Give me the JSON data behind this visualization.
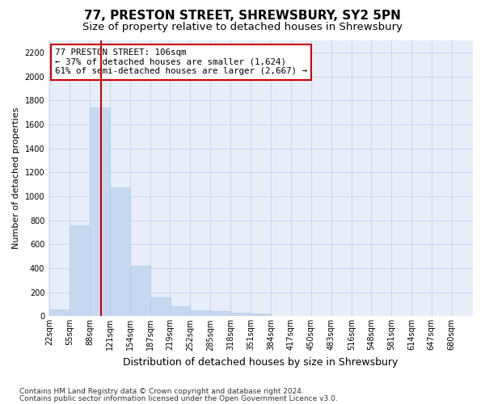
{
  "title": "77, PRESTON STREET, SHREWSBURY, SY2 5PN",
  "subtitle": "Size of property relative to detached houses in Shrewsbury",
  "xlabel": "Distribution of detached houses by size in Shrewsbury",
  "ylabel": "Number of detached properties",
  "footnote1": "Contains HM Land Registry data © Crown copyright and database right 2024.",
  "footnote2": "Contains public sector information licensed under the Open Government Licence v3.0.",
  "annotation_line1": "77 PRESTON STREET: 106sqm",
  "annotation_line2": "← 37% of detached houses are smaller (1,624)",
  "annotation_line3": "61% of semi-detached houses are larger (2,667) →",
  "bar_color": "#c5d8f0",
  "bar_edge_color": "#b0c8e8",
  "redline_color": "#cc0000",
  "background_color": "#e8eef8",
  "grid_color": "#c8d4ec",
  "bin_labels": [
    "22sqm",
    "55sqm",
    "88sqm",
    "121sqm",
    "154sqm",
    "187sqm",
    "219sqm",
    "252sqm",
    "285sqm",
    "318sqm",
    "351sqm",
    "384sqm",
    "417sqm",
    "450sqm",
    "483sqm",
    "516sqm",
    "548sqm",
    "581sqm",
    "614sqm",
    "647sqm",
    "680sqm"
  ],
  "bin_left_edges": [
    22,
    55,
    88,
    121,
    154,
    187,
    219,
    252,
    285,
    318,
    351,
    384,
    417,
    450,
    483,
    516,
    548,
    581,
    614,
    647,
    680
  ],
  "bin_width": 33,
  "bar_heights": [
    55,
    760,
    1740,
    1075,
    420,
    160,
    85,
    50,
    45,
    30,
    20,
    0,
    0,
    0,
    0,
    0,
    0,
    0,
    0,
    0,
    0
  ],
  "ylim": [
    0,
    2300
  ],
  "yticks": [
    0,
    200,
    400,
    600,
    800,
    1000,
    1200,
    1400,
    1600,
    1800,
    2000,
    2200
  ],
  "redline_x": 106,
  "title_fontsize": 11,
  "subtitle_fontsize": 9.5,
  "ylabel_fontsize": 8,
  "xlabel_fontsize": 9,
  "footnote_fontsize": 6.5,
  "annot_fontsize": 7.8,
  "tick_fontsize": 7
}
